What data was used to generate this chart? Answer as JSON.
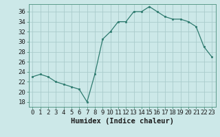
{
  "x": [
    0,
    1,
    2,
    3,
    4,
    5,
    6,
    7,
    8,
    9,
    10,
    11,
    12,
    13,
    14,
    15,
    16,
    17,
    18,
    19,
    20,
    21,
    22,
    23
  ],
  "y": [
    23,
    23.5,
    23,
    22,
    21.5,
    21,
    20.5,
    18,
    23.5,
    30.5,
    32,
    34,
    34,
    36,
    36,
    37,
    36,
    35,
    34.5,
    34.5,
    34,
    33,
    29,
    27
  ],
  "line_color": "#2d7a6e",
  "marker_color": "#2d7a6e",
  "bg_color": "#cce8e8",
  "grid_color": "#aacccc",
  "xlabel": "Humidex (Indice chaleur)",
  "xlim": [
    -0.5,
    23.5
  ],
  "ylim": [
    17,
    37.5
  ],
  "yticks": [
    18,
    20,
    22,
    24,
    26,
    28,
    30,
    32,
    34,
    36
  ],
  "xticks": [
    0,
    1,
    2,
    3,
    4,
    5,
    6,
    7,
    8,
    9,
    10,
    11,
    12,
    13,
    14,
    15,
    16,
    17,
    18,
    19,
    20,
    21,
    22,
    23
  ],
  "xlabel_fontsize": 7.5,
  "tick_fontsize": 6.5
}
